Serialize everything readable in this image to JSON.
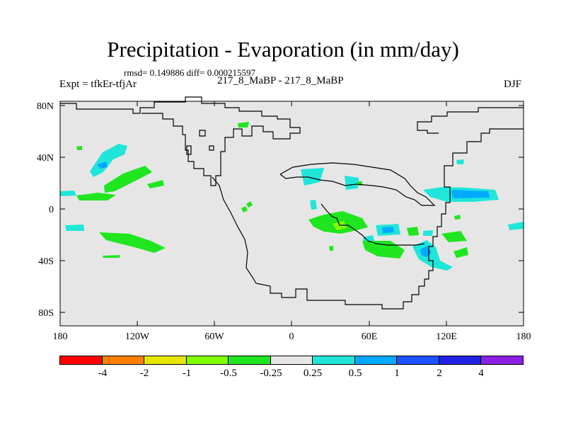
{
  "header": {
    "title": "Precipitation - Evaporation (in mm/day)",
    "stats": "rmsd= 0.149886 diff= 0.000215597",
    "experiment": "Expt = tfkEr-tfjAr",
    "cases": "217_8_MaBP - 217_8_MaBP",
    "season": "DJF"
  },
  "axes": {
    "x_ticks": [
      "180",
      "120W",
      "60W",
      "0",
      "60E",
      "120E",
      "180"
    ],
    "y_ticks": [
      "80N",
      "40N",
      "0",
      "40S",
      "80S"
    ]
  },
  "colorbar": {
    "labels": [
      "-4",
      "-2",
      "-1",
      "-0.5",
      "-0.25",
      "0.25",
      "0.5",
      "1",
      "2",
      "4"
    ],
    "colors": [
      "#ff0000",
      "#ff8000",
      "#e6e600",
      "#80ff00",
      "#1fe61f",
      "#e6e6e6",
      "#1fe6d9",
      "#00aaff",
      "#1e50ff",
      "#1f1fe6",
      "#8c1fe6"
    ]
  },
  "map": {
    "background_color": "#e6e6e6",
    "coastline_color": "#000000"
  }
}
